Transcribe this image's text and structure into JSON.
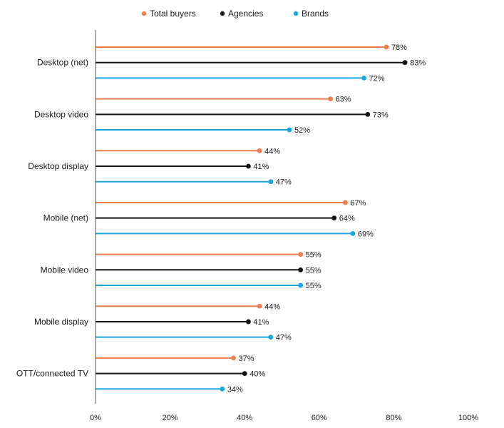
{
  "chart_data": {
    "type": "bar",
    "categories": [
      "Desktop (net)",
      "Desktop video",
      "Desktop display",
      "Mobile (net)",
      "Mobile video",
      "Mobile display",
      "OTT/connected TV"
    ],
    "series": [
      {
        "name": "Total buyers",
        "color": "#f07d4a",
        "values": [
          78,
          63,
          44,
          67,
          55,
          44,
          37
        ],
        "labels": [
          "78%",
          "63%",
          "44%",
          "67%",
          "55%",
          "44%",
          "37%"
        ]
      },
      {
        "name": "Agencies",
        "color": "#111111",
        "values": [
          83,
          73,
          41,
          64,
          55,
          41,
          40
        ],
        "labels": [
          "83%",
          "73%",
          "41%",
          "64%",
          "55%",
          "41%",
          "40%"
        ]
      },
      {
        "name": "Brands",
        "color": "#1aa7df",
        "values": [
          72,
          52,
          47,
          69,
          55,
          47,
          34
        ],
        "labels": [
          "72%",
          "52%",
          "47%",
          "69%",
          "55%",
          "47%",
          "34%"
        ]
      }
    ],
    "x_ticks": [
      "0%",
      "20%",
      "40%",
      "60%",
      "80%",
      "100%"
    ],
    "xlim": [
      0,
      100
    ],
    "orientation": "horizontal",
    "style": "lollipop",
    "legend_position": "top",
    "grid": false
  }
}
